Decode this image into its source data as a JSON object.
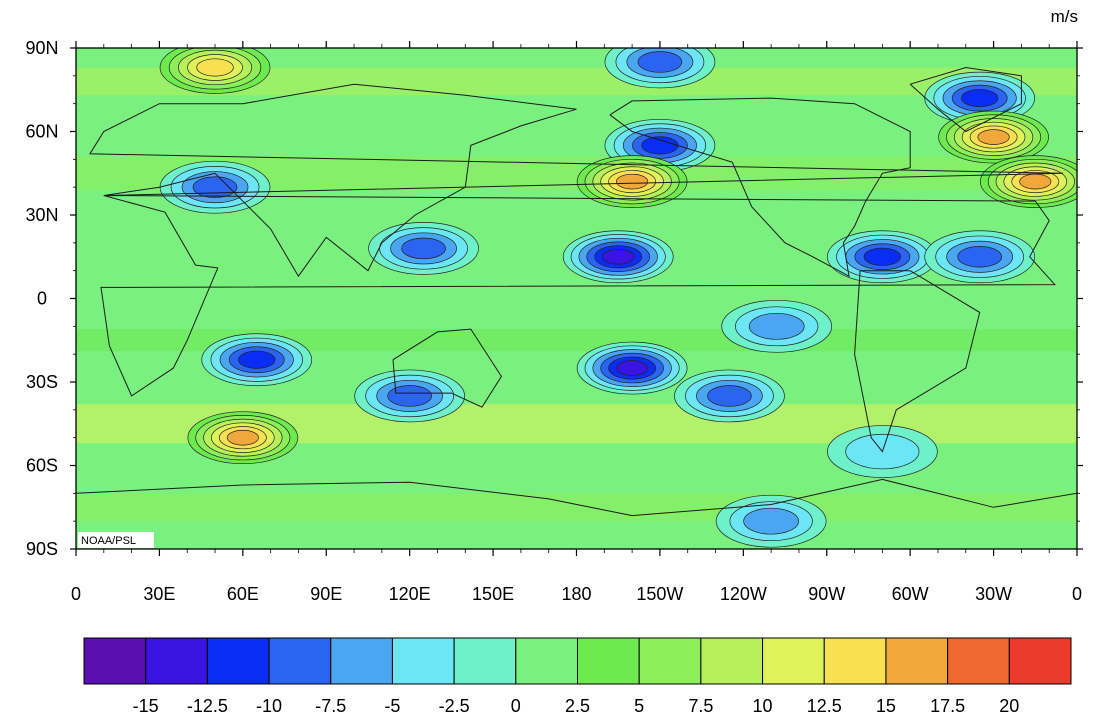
{
  "map": {
    "units": "m/s",
    "credit": "NOAA/PSL",
    "lat_labels": [
      "90N",
      "60N",
      "30N",
      "0",
      "30S",
      "60S",
      "90S"
    ],
    "lon_labels": [
      "0",
      "30E",
      "60E",
      "90E",
      "120E",
      "150E",
      "180",
      "150W",
      "120W",
      "90W",
      "60W",
      "30W",
      "0"
    ],
    "lon_range": [
      0,
      360
    ],
    "lat_range": [
      -90,
      90
    ],
    "field_note_features": [
      {
        "lon": 195,
        "lat": 15,
        "value": -15
      },
      {
        "lon": 200,
        "lat": -25,
        "value": -15
      },
      {
        "lon": 125,
        "lat": 18,
        "value": -10
      },
      {
        "lon": 290,
        "lat": 15,
        "value": -12.5
      },
      {
        "lon": 325,
        "lat": 15,
        "value": -10
      },
      {
        "lon": 252,
        "lat": -10,
        "value": -7.5
      },
      {
        "lon": 65,
        "lat": -22,
        "value": -12.5
      },
      {
        "lon": 120,
        "lat": -35,
        "value": -10
      },
      {
        "lon": 235,
        "lat": -35,
        "value": -10
      },
      {
        "lon": 210,
        "lat": 55,
        "value": -12.5
      },
      {
        "lon": 210,
        "lat": 85,
        "value": -10
      },
      {
        "lon": 325,
        "lat": 72,
        "value": -12.5
      },
      {
        "lon": 50,
        "lat": 40,
        "value": -10
      },
      {
        "lon": 200,
        "lat": 42,
        "value": 17.5
      },
      {
        "lon": 60,
        "lat": -50,
        "value": 20
      },
      {
        "lon": 330,
        "lat": 58,
        "value": 17.5
      },
      {
        "lon": 345,
        "lat": 42,
        "value": 15
      },
      {
        "lon": 50,
        "lat": 83,
        "value": 12.5
      },
      {
        "lon": 290,
        "lat": -55,
        "value": -5
      },
      {
        "lon": 250,
        "lat": -80,
        "value": -7.5
      }
    ]
  },
  "colorbar": {
    "levels": [
      -15,
      -12.5,
      -10,
      -7.5,
      -5,
      -2.5,
      0,
      2.5,
      5,
      7.5,
      10,
      12.5,
      15,
      17.5,
      20
    ],
    "tick_labels": [
      "-15",
      "-12.5",
      "-10",
      "-7.5",
      "-5",
      "-2.5",
      "0",
      "2.5",
      "5",
      "7.5",
      "10",
      "12.5",
      "15",
      "17.5",
      "20"
    ],
    "colors": [
      "#5a0fb3",
      "#3a14e0",
      "#0a2df5",
      "#2a64f0",
      "#4aa6f0",
      "#6ce6f4",
      "#6ef0c8",
      "#7af07e",
      "#6cea4e",
      "#8cee58",
      "#b6f05a",
      "#e0f25a",
      "#f8e050",
      "#f0a83c",
      "#ee6a30",
      "#ec3a2c"
    ]
  }
}
